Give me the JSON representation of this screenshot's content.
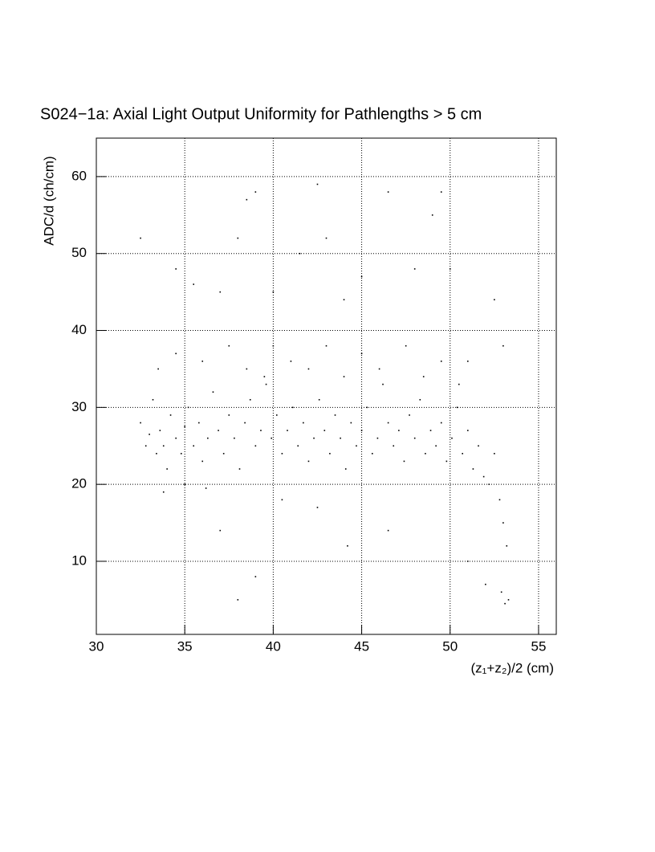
{
  "chart_data": {
    "type": "scatter",
    "title": "S024−1a: Axial Light Output Uniformity for Pathlengths > 5 cm",
    "x_label": "(z₁+z₂)/2 (cm)",
    "y_label": "ADC/d (ch/cm)",
    "color": "#000000",
    "grid": true,
    "xlim": [
      30,
      56
    ],
    "ylim": [
      0.5,
      65
    ],
    "xticks": [
      30,
      35,
      40,
      45,
      50,
      55
    ],
    "yticks": [
      10,
      20,
      30,
      40,
      50,
      60
    ],
    "x": [
      32.5,
      32.8,
      33.0,
      33.2,
      33.4,
      33.6,
      33.8,
      34.0,
      34.2,
      34.5,
      34.8,
      35.0,
      35.2,
      35.5,
      35.8,
      36.0,
      36.3,
      36.6,
      36.9,
      37.2,
      37.5,
      37.8,
      38.1,
      38.4,
      38.7,
      39.0,
      39.3,
      39.6,
      39.9,
      40.2,
      40.5,
      40.8,
      41.1,
      41.4,
      41.7,
      42.0,
      42.3,
      42.6,
      42.9,
      43.2,
      43.5,
      43.8,
      44.1,
      44.4,
      44.7,
      45.0,
      45.3,
      45.6,
      45.9,
      46.2,
      46.5,
      46.8,
      47.1,
      47.4,
      47.7,
      48.0,
      48.3,
      48.6,
      48.9,
      49.2,
      49.5,
      49.8,
      50.1,
      50.4,
      50.7,
      51.0,
      51.3,
      51.6,
      51.9,
      52.2,
      52.5,
      52.8,
      53.0,
      53.2,
      52.9,
      53.1,
      53.3,
      33.5,
      34.5,
      36.0,
      37.5,
      38.5,
      39.5,
      40.0,
      41.0,
      42.0,
      43.0,
      44.0,
      45.0,
      46.0,
      47.5,
      48.5,
      49.5,
      50.5,
      51.0,
      32.5,
      38.5,
      39.0,
      38.0,
      42.5,
      43.0,
      46.5,
      49.0,
      49.5,
      34.5,
      35.5,
      37.0,
      40.0,
      41.5,
      44.0,
      45.0,
      48.0,
      50.0,
      52.5,
      53.0,
      35.0,
      36.2,
      33.8,
      42.5,
      44.2,
      46.5,
      40.5,
      37.0,
      39.0,
      38.0,
      52.0,
      51.0
    ],
    "values": [
      28,
      25,
      26.5,
      31,
      24,
      27,
      25,
      22,
      29,
      26,
      24,
      27.5,
      30,
      25,
      28,
      23,
      26,
      32,
      27,
      24,
      29,
      26,
      22,
      28,
      31,
      25,
      27,
      33,
      26,
      29,
      24,
      27,
      30,
      25,
      28,
      23,
      26,
      31,
      27,
      24,
      29,
      26,
      22,
      28,
      25,
      27,
      30,
      24,
      26,
      33,
      28,
      25,
      27,
      23,
      29,
      26,
      31,
      24,
      27,
      25,
      28,
      23,
      26,
      30,
      24,
      27,
      22,
      25,
      21,
      20,
      24,
      18,
      15,
      12,
      6,
      4.5,
      5,
      35,
      37,
      36,
      38,
      35,
      34,
      38,
      36,
      35,
      38,
      34,
      37,
      35,
      38,
      34,
      36,
      33,
      36,
      52,
      57,
      58,
      52,
      59,
      52,
      58,
      55,
      58,
      48,
      46,
      45,
      45,
      50,
      44,
      47,
      48,
      48,
      44,
      38,
      20,
      19.5,
      19,
      17,
      12,
      14,
      18,
      14,
      8,
      5,
      7,
      10
    ]
  }
}
